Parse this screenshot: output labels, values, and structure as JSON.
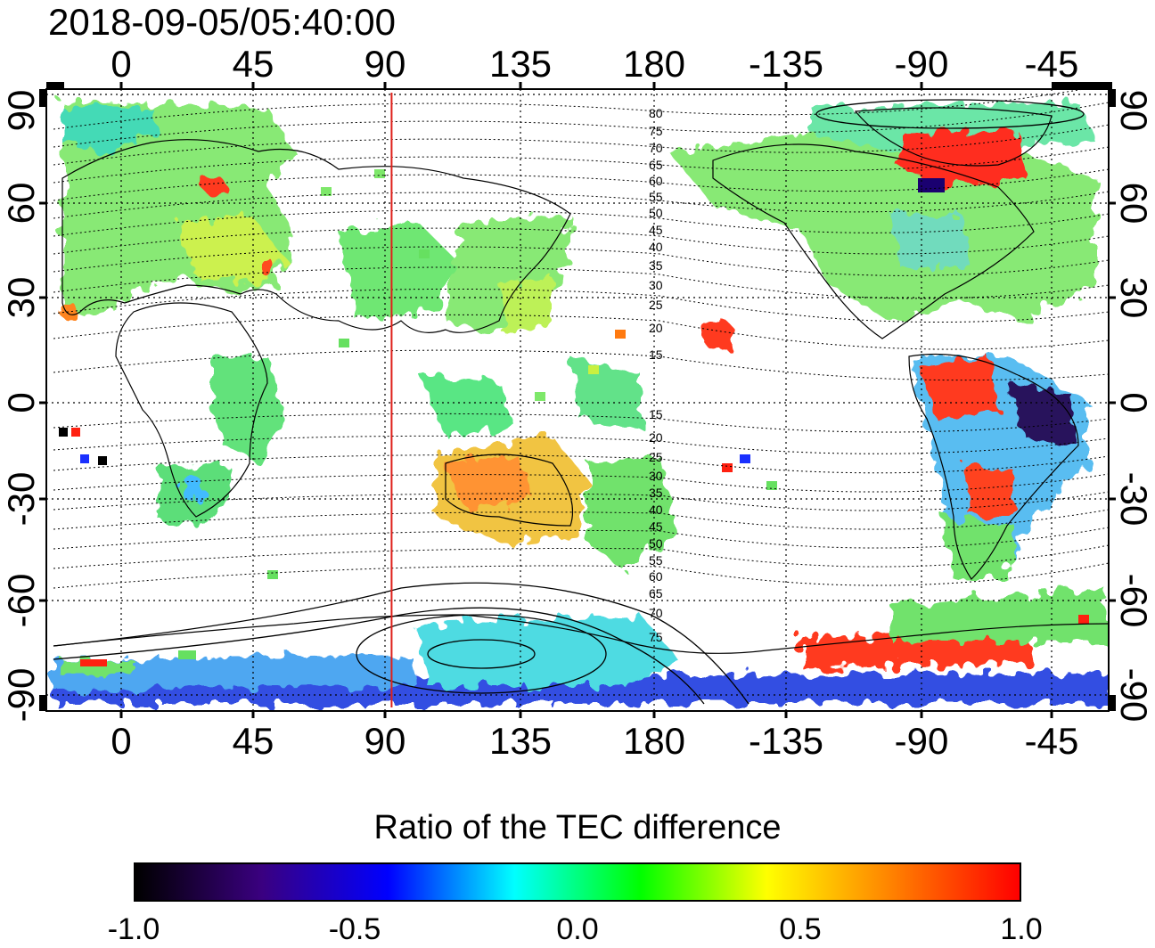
{
  "title": "2018-09-05/05:40:00",
  "map": {
    "lon_ticks": [
      "0",
      "45",
      "90",
      "135",
      "180",
      "-135",
      "-90",
      "-45"
    ],
    "lat_ticks": [
      "90",
      "60",
      "30",
      "0",
      "-30",
      "-60",
      "-90"
    ],
    "lon_tick_values": [
      0,
      45,
      90,
      135,
      180,
      225,
      270,
      315
    ],
    "lat_tick_values": [
      90,
      60,
      30,
      0,
      -30,
      -60,
      -90
    ],
    "lon_range": [
      -22,
      338
    ],
    "lat_range": [
      -92,
      92
    ],
    "marker_longitude": 95,
    "contour_labels_north": [
      "80",
      "75",
      "70",
      "65",
      "60",
      "55",
      "50",
      "45",
      "40",
      "35",
      "30",
      "25",
      "20",
      "15"
    ],
    "contour_labels_south": [
      "15",
      "20",
      "25",
      "30",
      "35",
      "40",
      "45",
      "50",
      "55",
      "60",
      "65",
      "70",
      "75"
    ],
    "colors": {
      "marker": "#e0201a",
      "grid": "#000000"
    }
  },
  "colorbar": {
    "title": "Ratio of the TEC difference",
    "ticks": [
      "-1.0",
      "-0.5",
      "0.0",
      "0.5",
      "1.0"
    ],
    "min": -1.0,
    "max": 1.0,
    "colors": [
      "#000000",
      "#3a0080",
      "#0000ff",
      "#00ffff",
      "#00ff00",
      "#ffff00",
      "#ff8000",
      "#ff0000"
    ]
  }
}
